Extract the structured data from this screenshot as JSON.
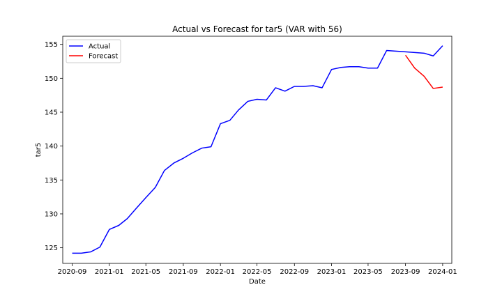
{
  "chart_data": {
    "type": "line",
    "title": "Actual vs Forecast for tar5 (VAR with 56)",
    "xlabel": "Date",
    "ylabel": "tar5",
    "xlim": [
      "2020-08-01",
      "2024-01-31"
    ],
    "ylim": [
      122.7,
      156.2
    ],
    "x_ticks": [
      "2020-09",
      "2021-01",
      "2021-05",
      "2021-09",
      "2022-01",
      "2022-05",
      "2022-09",
      "2023-01",
      "2023-05",
      "2023-09",
      "2024-01"
    ],
    "y_ticks": [
      125,
      130,
      135,
      140,
      145,
      150,
      155
    ],
    "grid": false,
    "legend": {
      "placement": "top-left",
      "entries": [
        "Actual",
        "Forecast"
      ]
    },
    "series": [
      {
        "name": "Actual",
        "color": "#0000ff",
        "points": [
          [
            "2020-09-01",
            124.2
          ],
          [
            "2020-10-01",
            124.2
          ],
          [
            "2020-11-01",
            124.4
          ],
          [
            "2020-12-01",
            125.1
          ],
          [
            "2021-01-01",
            127.7
          ],
          [
            "2021-02-01",
            128.3
          ],
          [
            "2021-03-01",
            129.3
          ],
          [
            "2021-04-01",
            130.9
          ],
          [
            "2021-05-01",
            132.4
          ],
          [
            "2021-06-01",
            133.9
          ],
          [
            "2021-07-01",
            136.4
          ],
          [
            "2021-08-01",
            137.5
          ],
          [
            "2021-09-01",
            138.2
          ],
          [
            "2021-10-01",
            139.0
          ],
          [
            "2021-11-01",
            139.7
          ],
          [
            "2021-12-01",
            139.9
          ],
          [
            "2022-01-01",
            143.3
          ],
          [
            "2022-02-01",
            143.8
          ],
          [
            "2022-03-01",
            145.3
          ],
          [
            "2022-04-01",
            146.6
          ],
          [
            "2022-05-01",
            146.9
          ],
          [
            "2022-06-01",
            146.8
          ],
          [
            "2022-07-01",
            148.6
          ],
          [
            "2022-08-01",
            148.1
          ],
          [
            "2022-09-01",
            148.8
          ],
          [
            "2022-10-01",
            148.8
          ],
          [
            "2022-11-01",
            148.9
          ],
          [
            "2022-12-01",
            148.6
          ],
          [
            "2023-01-01",
            151.3
          ],
          [
            "2023-02-01",
            151.6
          ],
          [
            "2023-03-01",
            151.7
          ],
          [
            "2023-04-01",
            151.7
          ],
          [
            "2023-05-01",
            151.5
          ],
          [
            "2023-06-01",
            151.5
          ],
          [
            "2023-07-01",
            154.1
          ],
          [
            "2023-09-01",
            153.9
          ],
          [
            "2023-11-01",
            153.7
          ],
          [
            "2023-12-01",
            153.3
          ],
          [
            "2024-01-01",
            154.8
          ]
        ]
      },
      {
        "name": "Forecast",
        "color": "#ff0000",
        "points": [
          [
            "2023-09-01",
            153.4
          ],
          [
            "2023-10-01",
            151.5
          ],
          [
            "2023-11-01",
            150.3
          ],
          [
            "2023-12-01",
            148.5
          ],
          [
            "2024-01-01",
            148.7
          ]
        ]
      }
    ]
  }
}
